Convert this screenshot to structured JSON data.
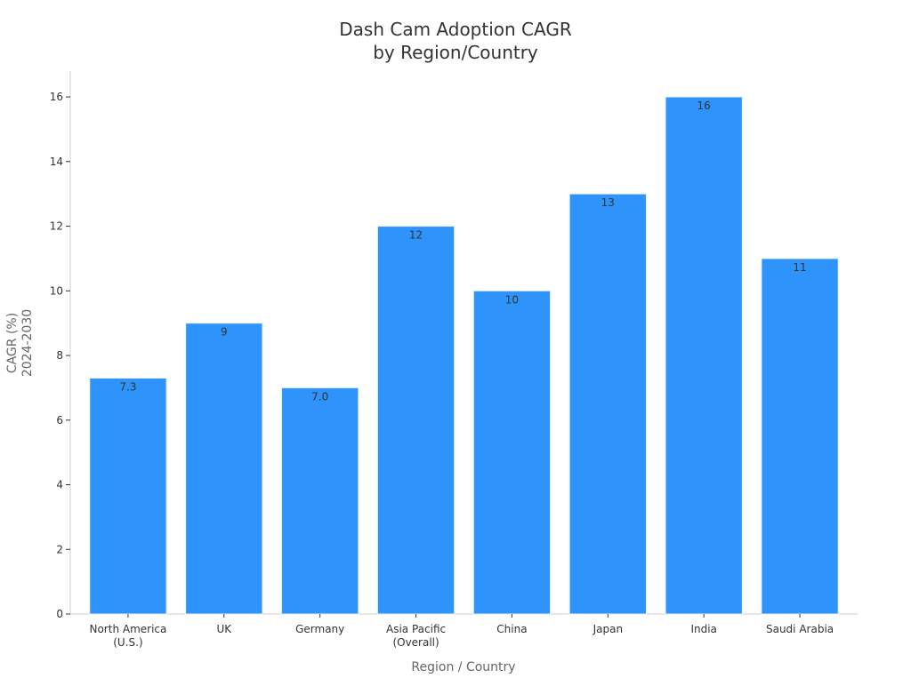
{
  "chart_data": {
    "type": "bar",
    "title_lines": [
      "Dash Cam Adoption CAGR",
      "by Region/Country"
    ],
    "xlabel": "Region / Country",
    "ylabel_lines": [
      "CAGR (%)",
      "2024-2030"
    ],
    "categories": [
      [
        "North America",
        "(U.S.)"
      ],
      [
        "UK"
      ],
      [
        "Germany"
      ],
      [
        "Asia Pacific",
        "(Overall)"
      ],
      [
        "China"
      ],
      [
        "Japan"
      ],
      [
        "India"
      ],
      [
        "Saudi Arabia"
      ]
    ],
    "values": [
      7.3,
      9,
      7.0,
      12,
      10,
      13,
      16,
      11
    ],
    "value_labels": [
      "7.3",
      "9",
      "7.0",
      "12",
      "10",
      "13",
      "16",
      "11"
    ],
    "ylim": [
      0,
      16.8
    ],
    "yticks": [
      0,
      2,
      4,
      6,
      8,
      10,
      12,
      14,
      16
    ],
    "grid": false,
    "legend": "none",
    "bar_color": "#2e93fa",
    "bar_edge_color": "#e6f0ff"
  }
}
